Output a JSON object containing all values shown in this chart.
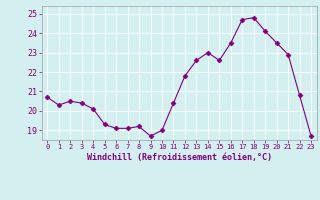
{
  "x": [
    0,
    1,
    2,
    3,
    4,
    5,
    6,
    7,
    8,
    9,
    10,
    11,
    12,
    13,
    14,
    15,
    16,
    17,
    18,
    19,
    20,
    21,
    22,
    23
  ],
  "y": [
    20.7,
    20.3,
    20.5,
    20.4,
    20.1,
    19.3,
    19.1,
    19.1,
    19.2,
    18.7,
    19.0,
    20.4,
    21.8,
    22.6,
    23.0,
    22.6,
    23.5,
    24.7,
    24.8,
    24.1,
    23.5,
    22.9,
    20.8,
    18.7
  ],
  "line_color": "#800080",
  "marker": "D",
  "marker_size": 2.5,
  "xlabel": "Windchill (Refroidissement éolien,°C)",
  "ylim": [
    18.5,
    25.4
  ],
  "yticks": [
    19,
    20,
    21,
    22,
    23,
    24,
    25
  ],
  "xlim": [
    -0.5,
    23.5
  ],
  "xticks": [
    0,
    1,
    2,
    3,
    4,
    5,
    6,
    7,
    8,
    9,
    10,
    11,
    12,
    13,
    14,
    15,
    16,
    17,
    18,
    19,
    20,
    21,
    22,
    23
  ],
  "bg_color": "#d4efef",
  "grid_color": "#b8d8d8",
  "label_color": "#800080",
  "tick_color": "#800080",
  "font_family": "monospace"
}
